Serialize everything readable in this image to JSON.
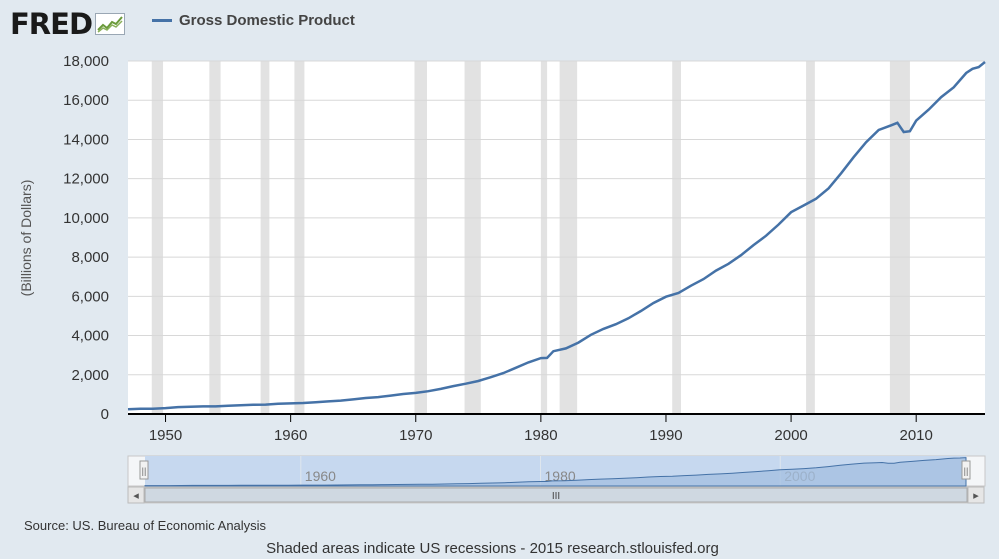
{
  "header": {
    "logo": "FRED",
    "series_label": "Gross Domestic Product"
  },
  "colors": {
    "line": "#4572a7",
    "recession": "#e2e2e2",
    "plot_bg": "#ffffff",
    "navigator_fill": "#a3bfe0",
    "navigator_line": "#4572a7"
  },
  "chart_data": {
    "type": "line",
    "ylabel": "(Billions of Dollars)",
    "xlim": [
      1947,
      2015.5
    ],
    "ylim": [
      0,
      18000
    ],
    "yticks": [
      0,
      2000,
      4000,
      6000,
      8000,
      10000,
      12000,
      14000,
      16000,
      18000
    ],
    "ytick_labels": [
      "0",
      "2,000",
      "4,000",
      "6,000",
      "8,000",
      "10,000",
      "12,000",
      "14,000",
      "16,000",
      "18,000"
    ],
    "xticks": [
      1950,
      1960,
      1970,
      1980,
      1990,
      2000,
      2010
    ],
    "xtick_labels": [
      "1950",
      "1960",
      "1970",
      "1980",
      "1990",
      "2000",
      "2010"
    ],
    "grid": "horizontal",
    "series": [
      {
        "name": "Gross Domestic Product",
        "x": [
          1947,
          1948,
          1949,
          1950,
          1951,
          1952,
          1953,
          1954,
          1955,
          1956,
          1957,
          1958,
          1959,
          1960,
          1961,
          1962,
          1963,
          1964,
          1965,
          1966,
          1967,
          1968,
          1969,
          1970,
          1971,
          1972,
          1973,
          1974,
          1975,
          1976,
          1977,
          1978,
          1979,
          1980,
          1980.5,
          1981,
          1982,
          1983,
          1984,
          1985,
          1986,
          1987,
          1988,
          1989,
          1990,
          1991,
          1992,
          1993,
          1994,
          1995,
          1996,
          1997,
          1998,
          1999,
          2000,
          2001,
          2002,
          2003,
          2004,
          2005,
          2006,
          2007,
          2008,
          2008.5,
          2009,
          2009.5,
          2010,
          2011,
          2012,
          2013,
          2014,
          2014.5,
          2015,
          2015.5
        ],
        "values": [
          243,
          270,
          270,
          300,
          350,
          370,
          390,
          390,
          425,
          450,
          470,
          480,
          520,
          540,
          560,
          600,
          640,
          685,
          745,
          815,
          860,
          940,
          1020,
          1075,
          1165,
          1280,
          1425,
          1545,
          1685,
          1875,
          2085,
          2355,
          2630,
          2850,
          2860,
          3200,
          3345,
          3640,
          4040,
          4340,
          4580,
          4880,
          5250,
          5660,
          5980,
          6170,
          6540,
          6880,
          7310,
          7660,
          8100,
          8610,
          9090,
          9665,
          10290,
          10630,
          10980,
          11510,
          12275,
          13095,
          13860,
          14480,
          14720,
          14850,
          14380,
          14420,
          14960,
          15520,
          16160,
          16660,
          17390,
          17600,
          17690,
          17950
        ]
      }
    ],
    "recessions": [
      [
        1948.9,
        1949.8
      ],
      [
        1953.5,
        1954.4
      ],
      [
        1957.6,
        1958.3
      ],
      [
        1960.3,
        1961.1
      ],
      [
        1969.9,
        1970.9
      ],
      [
        1973.9,
        1975.2
      ],
      [
        1980.0,
        1980.5
      ],
      [
        1981.5,
        1982.9
      ],
      [
        1990.5,
        1991.2
      ],
      [
        2001.2,
        2001.9
      ],
      [
        2007.9,
        2009.5
      ]
    ],
    "navigator": {
      "tick_labels": [
        "1960",
        "1980",
        "2000"
      ],
      "tick_values": [
        1960,
        1980,
        2000
      ],
      "range": [
        1947,
        2015.5
      ]
    }
  },
  "footer": {
    "source": "Source: US. Bureau of Economic Analysis",
    "note": "Shaded areas indicate US recessions - 2015 research.stlouisfed.org"
  },
  "controls": {
    "left_arrow": "◂",
    "right_arrow": "▸",
    "scroll_grip": "III",
    "handle_grip": "||"
  }
}
